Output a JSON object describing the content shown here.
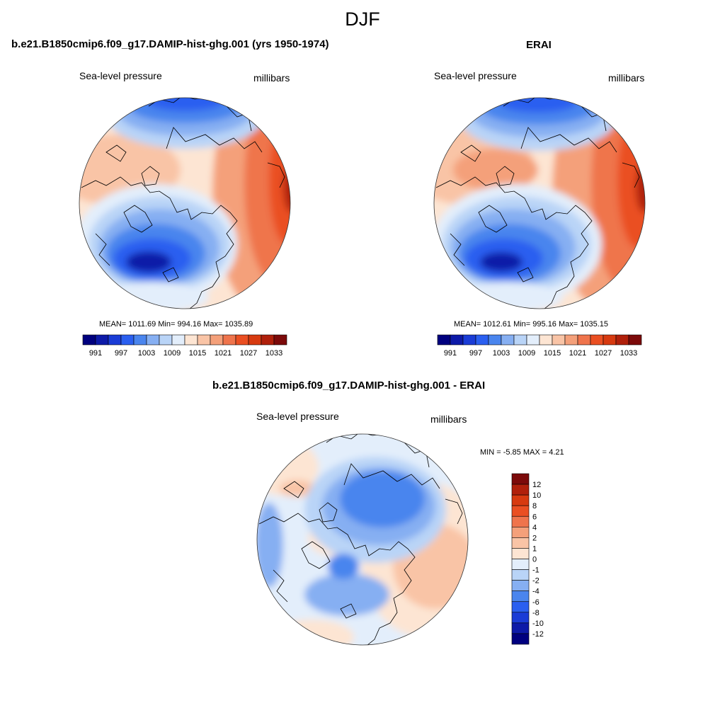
{
  "figure": {
    "title": "DJF",
    "colors": [
      "#00007f",
      "#0d1aa8",
      "#1a3cd6",
      "#2a5ff0",
      "#4a85ee",
      "#86aff2",
      "#b9d4f7",
      "#e3eefb",
      "#fde5d3",
      "#f9c4a6",
      "#f4a07a",
      "#ef744c",
      "#ea4f22",
      "#d73a10",
      "#b0200b",
      "#7c0a0a"
    ]
  },
  "panels": {
    "model": {
      "title": "b.e21.B1850cmip6.f09_g17.DAMIP-hist-ghg.001 (yrs 1950-1974)",
      "left_label": "Sea-level pressure",
      "right_label": "millibars",
      "stats": "MEAN= 1011.69  Min= 994.16  Max= 1035.89"
    },
    "obs": {
      "title": "ERAI",
      "left_label": "Sea-level pressure",
      "right_label": "millibars",
      "stats": "MEAN= 1012.61  Min= 995.16  Max= 1035.15"
    },
    "diff": {
      "title": "b.e21.B1850cmip6.f09_g17.DAMIP-hist-ghg.001 - ERAI",
      "left_label": "Sea-level pressure",
      "right_label": "millibars",
      "stats": "MIN =  -5.85 MAX =   4.21"
    }
  },
  "chart_data": [
    {
      "type": "heatmap",
      "projection": "north-polar-stereographic",
      "title": "b.e21.B1850cmip6.f09_g17.DAMIP-hist-ghg.001 (yrs 1950-1974)",
      "variable": "Sea-level pressure",
      "units": "millibars",
      "mean": 1011.69,
      "min": 994.16,
      "max": 1035.89,
      "colorbar_ticks": [
        "991",
        "997",
        "1003",
        "1009",
        "1015",
        "1021",
        "1027",
        "1033"
      ],
      "colorbar_orientation": "horizontal"
    },
    {
      "type": "heatmap",
      "projection": "north-polar-stereographic",
      "title": "ERAI",
      "variable": "Sea-level pressure",
      "units": "millibars",
      "mean": 1012.61,
      "min": 995.16,
      "max": 1035.15,
      "colorbar_ticks": [
        "991",
        "997",
        "1003",
        "1009",
        "1015",
        "1021",
        "1027",
        "1033"
      ],
      "colorbar_orientation": "horizontal"
    },
    {
      "type": "heatmap",
      "projection": "north-polar-stereographic",
      "title": "b.e21.B1850cmip6.f09_g17.DAMIP-hist-ghg.001 - ERAI",
      "variable": "Sea-level pressure",
      "units": "millibars",
      "min": -5.85,
      "max": 4.21,
      "colorbar_ticks": [
        "12",
        "10",
        "8",
        "6",
        "4",
        "2",
        "1",
        "0",
        "-1",
        "-2",
        "-4",
        "-6",
        "-8",
        "-10",
        "-12"
      ],
      "colorbar_orientation": "vertical"
    }
  ]
}
